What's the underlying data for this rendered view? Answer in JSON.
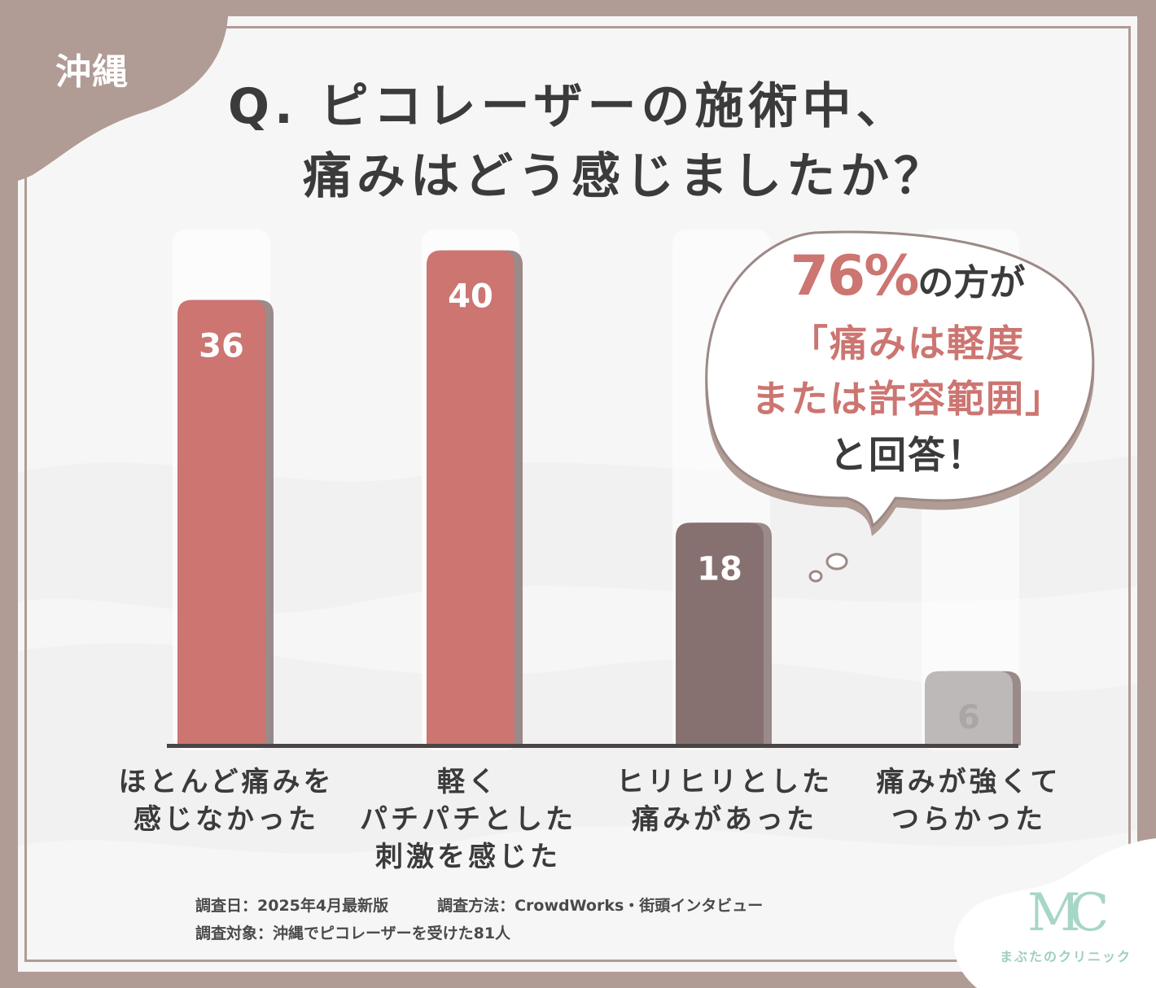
{
  "region": "沖縄",
  "question": {
    "line1": "Q. ピコレーザーの施術中、",
    "line2": "痛みはどう感じましたか？"
  },
  "callout": {
    "pct": "76%",
    "line1_rest": "の方が",
    "line2": "「痛みは軽度",
    "line3": "または許容範囲」",
    "line4": "と回答！"
  },
  "chart_data": {
    "type": "bar",
    "categories": [
      "ほとんど痛みを\n感じなかった",
      "軽く\nパチパチとした\n刺激を感じた",
      "ヒリヒリとした\n痛みがあった",
      "痛みが強くて\nつらかった"
    ],
    "values": [
      36,
      40,
      18,
      6
    ],
    "value_labels": [
      "36",
      "40",
      "18",
      "6"
    ],
    "bar_colors": [
      "#cc7571",
      "#cc7571",
      "#877170",
      "#bcb9b8"
    ],
    "value_label_colors": [
      "#ffffff",
      "#ffffff",
      "#ffffff",
      "#a9a6a5"
    ],
    "ylim": [
      0,
      48
    ],
    "grid": false,
    "legend": "none"
  },
  "survey": {
    "date": "調査日：2025年4月最新版",
    "method": "調査方法：CrowdWorks・街頭インタビュー",
    "target": "調査対象：沖縄でピコレーザーを受けた81人"
  },
  "logo": {
    "mark": "MC",
    "name": "まぶたのクリニック",
    "color": "#a7d6c6"
  },
  "colors": {
    "frame": "#b09b95",
    "accent": "#cc7571",
    "text": "#3b3b3b"
  }
}
